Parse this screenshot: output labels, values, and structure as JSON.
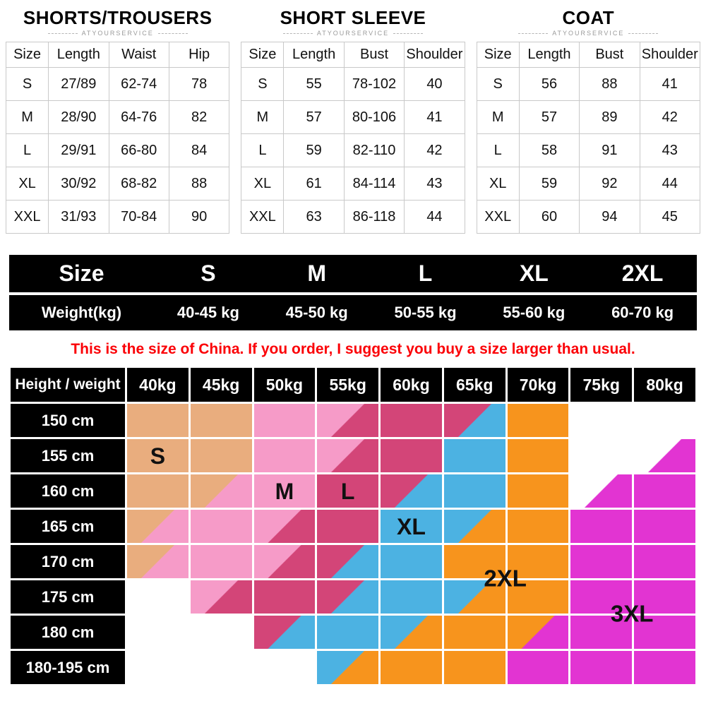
{
  "tables": [
    {
      "title": "SHORTS/TROUSERS",
      "subtitle": "ATYOURSERVICE",
      "headers": [
        "Size",
        "Length",
        "Waist",
        "Hip"
      ],
      "rows": [
        [
          "S",
          "27/89",
          "62-74",
          "78"
        ],
        [
          "M",
          "28/90",
          "64-76",
          "82"
        ],
        [
          "L",
          "29/91",
          "66-80",
          "84"
        ],
        [
          "XL",
          "30/92",
          "68-82",
          "88"
        ],
        [
          "XXL",
          "31/93",
          "70-84",
          "90"
        ]
      ]
    },
    {
      "title": "SHORT SLEEVE",
      "subtitle": "ATYOURSERVICE",
      "headers": [
        "Size",
        "Length",
        "Bust",
        "Shoulder"
      ],
      "rows": [
        [
          "S",
          "55",
          "78-102",
          "40"
        ],
        [
          "M",
          "57",
          "80-106",
          "41"
        ],
        [
          "L",
          "59",
          "82-110",
          "42"
        ],
        [
          "XL",
          "61",
          "84-114",
          "43"
        ],
        [
          "XXL",
          "63",
          "86-118",
          "44"
        ]
      ]
    },
    {
      "title": "COAT",
      "subtitle": "ATYOURSERVICE",
      "headers": [
        "Size",
        "Length",
        "Bust",
        "Shoulder"
      ],
      "rows": [
        [
          "S",
          "56",
          "88",
          "41"
        ],
        [
          "M",
          "57",
          "89",
          "42"
        ],
        [
          "L",
          "58",
          "91",
          "43"
        ],
        [
          "XL",
          "59",
          "92",
          "44"
        ],
        [
          "XXL",
          "60",
          "94",
          "45"
        ]
      ]
    }
  ],
  "weight_banner": {
    "rows": [
      [
        "Size",
        "S",
        "M",
        "L",
        "XL",
        "2XL"
      ],
      [
        "Weight(kg)",
        "40-45 kg",
        "45-50 kg",
        "50-55 kg",
        "55-60 kg",
        "60-70 kg"
      ]
    ]
  },
  "notice": "This is the size of China. If you order, I suggest you buy a size larger than usual.",
  "size_grid": {
    "corner_label": "Height / weight",
    "weight_headers": [
      "40kg",
      "45kg",
      "50kg",
      "55kg",
      "60kg",
      "65kg",
      "70kg",
      "75kg",
      "80kg"
    ],
    "height_rows": [
      "150 cm",
      "155 cm",
      "160 cm",
      "165 cm",
      "170 cm",
      "175 cm",
      "180 cm",
      "180-195 cm"
    ],
    "legend_colors": {
      "s": "#e9ad7e",
      "m": "#f69bc8",
      "l": "#d34578",
      "x": "#4cb2e2",
      "o": "#f7941d",
      "t": "#e234d2",
      "w": "#ffffff"
    },
    "cells": [
      [
        "s",
        "s",
        "m",
        "m/l",
        "l",
        "l/x",
        "o",
        "w",
        "w"
      ],
      [
        "s",
        "s",
        "m",
        "m/l",
        "l",
        "x",
        "o",
        "w",
        "w/t"
      ],
      [
        "s",
        "s/m",
        "m",
        "l",
        "l/x",
        "x",
        "o",
        "w/t",
        "t"
      ],
      [
        "s/m",
        "m",
        "m/l",
        "l",
        "x",
        "x/o",
        "o",
        "t",
        "t"
      ],
      [
        "s/m",
        "m",
        "m/l",
        "l/x",
        "x",
        "o",
        "o",
        "t",
        "t"
      ],
      [
        "w",
        "m/l",
        "l",
        "l/x",
        "x",
        "x/o",
        "o",
        "t",
        "t"
      ],
      [
        "w",
        "w",
        "l/x",
        "x",
        "x/o",
        "o",
        "o/t",
        "t",
        "t"
      ],
      [
        "w",
        "w",
        "w",
        "x/o",
        "o",
        "o",
        "t",
        "t",
        "t"
      ]
    ],
    "labels": [
      {
        "text": "S",
        "row": 1,
        "col": 0,
        "corner": false
      },
      {
        "text": "M",
        "row": 2,
        "col": 2,
        "corner": false
      },
      {
        "text": "L",
        "row": 2,
        "col": 3,
        "corner": false
      },
      {
        "text": "XL",
        "row": 3,
        "col": 4,
        "corner": false
      },
      {
        "text": "2XL",
        "row": 4,
        "col": 5,
        "corner": true
      },
      {
        "text": "3XL",
        "row": 5,
        "col": 7,
        "corner": true
      }
    ]
  }
}
